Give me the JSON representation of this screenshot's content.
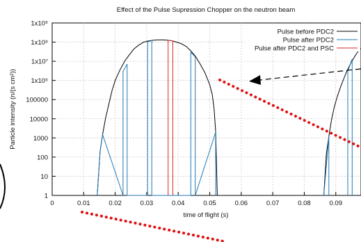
{
  "chart_data": {
    "type": "line",
    "title": "Effect of the Pulse Supression Chopper on the neutron beam",
    "xlabel": "time of flight (s)",
    "ylabel": "Particle intensity (n/(s cm²))",
    "xlim": [
      0,
      0.098
    ],
    "ylim": [
      1,
      1000000000
    ],
    "yscale": "log",
    "grid": true,
    "legend_position": "top-right",
    "x_ticks": [
      "0",
      "0.01",
      "0.02",
      "0.03",
      "0.04",
      "0.05",
      "0.06",
      "0.07",
      "0.08",
      "0.09"
    ],
    "y_ticks": [
      "1",
      "10",
      "100",
      "1000",
      "10000",
      "100000",
      "1x10⁶",
      "1x10⁷",
      "1x10⁸",
      "1x10⁹"
    ],
    "series": [
      {
        "name": "Pulse before PDC2",
        "color": "#000000",
        "x": [
          0.0143,
          0.0152,
          0.016,
          0.017,
          0.018,
          0.019,
          0.02,
          0.0215,
          0.023,
          0.0245,
          0.026,
          0.0275,
          0.029,
          0.0305,
          0.032,
          0.0335,
          0.035,
          0.0365,
          0.038,
          0.0395,
          0.041,
          0.0425,
          0.044,
          0.0455,
          0.047,
          0.0485,
          0.05,
          0.0508,
          0.0514,
          0.0519,
          0.0524
        ],
        "y": [
          1,
          200,
          1500,
          12000,
          60000,
          300000,
          1000000,
          3500000,
          10000000,
          22000000,
          45000000,
          70000000,
          100000000,
          115000000,
          125000000,
          130000000,
          130000000,
          126000000,
          118000000,
          100000000,
          82000000,
          60000000,
          35000000,
          18000000,
          7000000,
          2500000,
          600000,
          180000,
          30000,
          2000,
          1
        ]
      },
      {
        "name": "Pulse after PDC2",
        "color": "#1f77b4",
        "x": [
          0.0143,
          0.0152,
          0.016,
          0.0225,
          0.0225,
          0.0238,
          0.0238,
          0.0303,
          0.0303,
          0.0316,
          0.0316,
          0.044,
          0.044,
          0.0454,
          0.0454,
          0.0519,
          0.0519
        ],
        "y": [
          1,
          200,
          1500,
          1,
          3000000,
          7000000,
          1,
          1,
          105000000,
          120000000,
          1,
          1,
          30000000,
          17000000,
          1,
          2000,
          1
        ]
      },
      {
        "name": "Pulse after PDC2 and PSC",
        "color": "#d62728",
        "x": [
          0.0368,
          0.0368,
          0.0383,
          0.0383
        ],
        "y": [
          1,
          126000000,
          115000000,
          1
        ]
      }
    ],
    "annotations": [
      "dashed arrow",
      "red dotted lines"
    ]
  }
}
